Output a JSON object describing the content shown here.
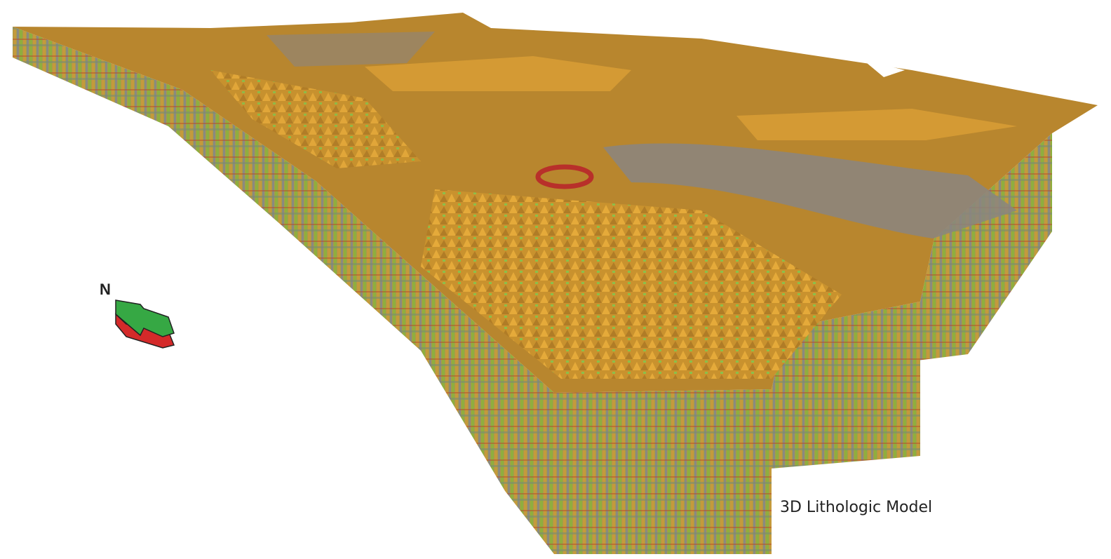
{
  "north_label": "N",
  "caption": "3D Lithologic Model"
}
